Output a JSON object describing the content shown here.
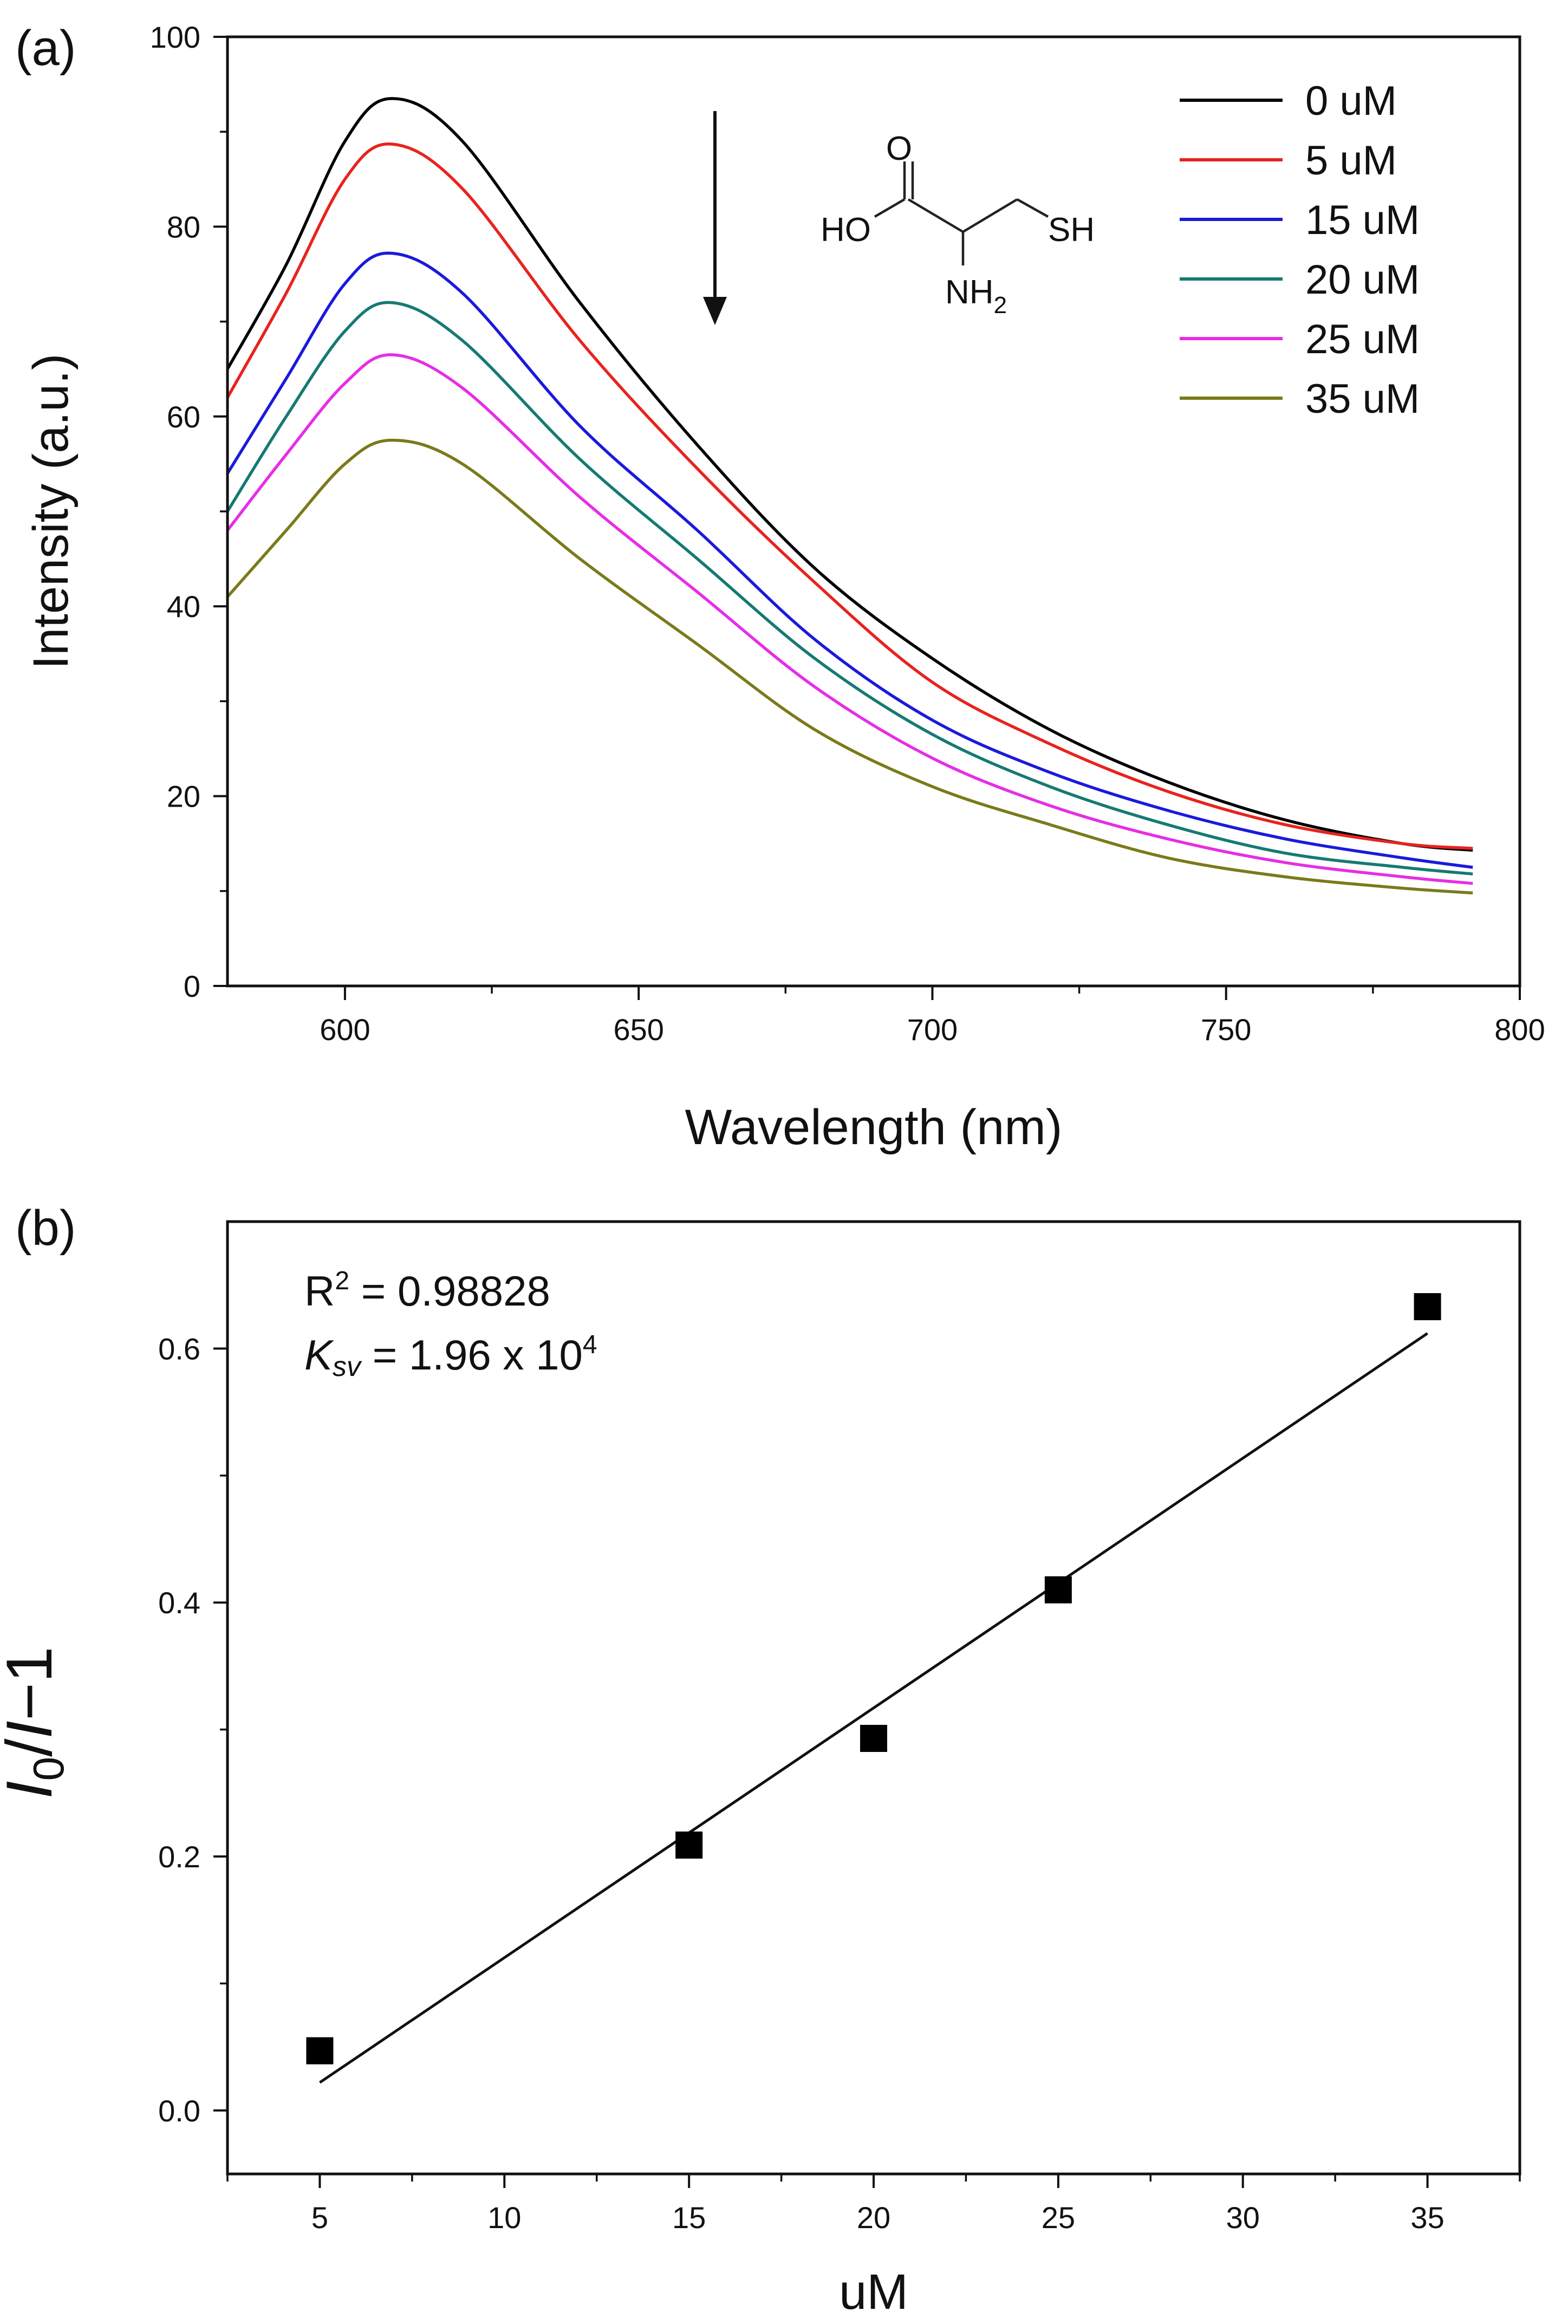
{
  "chart_data": [
    {
      "type": "line",
      "panel_label": "(a)",
      "xlabel": "Wavelength (nm)",
      "ylabel": "Intensity (a.u.)",
      "xlim": [
        580,
        800
      ],
      "ylim": [
        0,
        100
      ],
      "x_ticks": [
        600,
        650,
        700,
        750,
        800
      ],
      "y_ticks": [
        0,
        20,
        40,
        60,
        80,
        100
      ],
      "legend_position": "top-right",
      "annotation_arrow": "downward arrow (quenching)",
      "molecule_labels": {
        "o": "O",
        "ho": "HO",
        "sh": "SH",
        "nh2": "NH",
        "nh2_sub": "2"
      },
      "x": [
        580,
        590,
        600,
        608,
        620,
        640,
        660,
        680,
        700,
        720,
        740,
        760,
        780,
        792
      ],
      "series": [
        {
          "name": "0 uM",
          "color": "#000000",
          "values": [
            65,
            76,
            89,
            93.5,
            89,
            72,
            57,
            44,
            34.5,
            27,
            21.5,
            17.5,
            15,
            14.3
          ]
        },
        {
          "name": "5 uM",
          "color": "#e8231e",
          "values": [
            62,
            73,
            85,
            88.7,
            84,
            68,
            54.5,
            42.5,
            32,
            25.5,
            20.5,
            17,
            15,
            14.5
          ]
        },
        {
          "name": "15 uM",
          "color": "#1a1adb",
          "values": [
            54,
            64,
            74,
            77.2,
            73,
            59,
            48,
            36.5,
            28,
            22.5,
            18.5,
            15.5,
            13.5,
            12.5
          ]
        },
        {
          "name": "20 uM",
          "color": "#157a72",
          "values": [
            50,
            60,
            69,
            72,
            68,
            55.5,
            45,
            34.5,
            26.5,
            21,
            17,
            14,
            12.5,
            11.8
          ]
        },
        {
          "name": "25 uM",
          "color": "#e62ee6",
          "values": [
            48,
            56,
            63.5,
            66.5,
            63,
            51.5,
            41.5,
            31.5,
            24,
            19,
            15.5,
            13,
            11.5,
            10.8
          ]
        },
        {
          "name": "35 uM",
          "color": "#7a7a1a",
          "values": [
            41,
            48,
            55,
            57.5,
            55,
            45,
            36,
            27,
            21,
            17,
            13.5,
            11.5,
            10.3,
            9.8
          ]
        }
      ]
    },
    {
      "type": "scatter",
      "panel_label": "(b)",
      "xlabel": "uM",
      "ylabel_main": "I",
      "ylabel_sub": "0",
      "ylabel_rest": "/",
      "ylabel_i2": "I",
      "ylabel_end": "−1",
      "xlim": [
        2.5,
        37.5
      ],
      "ylim": [
        -0.05,
        0.7
      ],
      "x_ticks": [
        5,
        10,
        15,
        20,
        25,
        30,
        35
      ],
      "y_ticks": [
        0.0,
        0.2,
        0.4,
        0.6
      ],
      "y_tick_labels": [
        "0.0",
        "0.2",
        "0.4",
        "0.6"
      ],
      "points": {
        "x": [
          5,
          15,
          20,
          25,
          35
        ],
        "y": [
          0.047,
          0.209,
          0.293,
          0.41,
          0.633
        ]
      },
      "fit_line": {
        "x": [
          5,
          35
        ],
        "y": [
          0.022,
          0.612
        ]
      },
      "annotation_r2_prefix": "R",
      "annotation_r2_sup": "2",
      "annotation_r2_value": " = 0.98828",
      "annotation_k_symbol": "K",
      "annotation_k_sub": "sv",
      "annotation_k_value": " = 1.96 x 10",
      "annotation_k_sup": "4"
    }
  ]
}
